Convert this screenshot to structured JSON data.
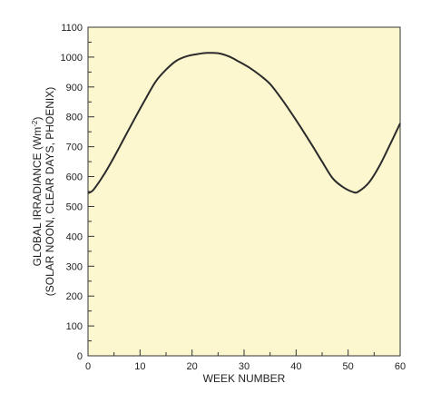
{
  "chart_data": {
    "type": "line",
    "xlabel": "WEEK NUMBER",
    "ylabel": {
      "line1_main": "GLOBAL IRRADIANCE (Wm",
      "line1_sup": "-2",
      "line1_end": ")",
      "line2": "(SOLAR NOON, CLEAR DAYS, PHOENIX)"
    },
    "xlim": [
      0,
      60
    ],
    "ylim": [
      0,
      1100
    ],
    "x_ticks": [
      0,
      10,
      20,
      30,
      40,
      50,
      60
    ],
    "x_minor_step": 5,
    "y_ticks": [
      0,
      100,
      200,
      300,
      400,
      500,
      600,
      700,
      800,
      900,
      1000,
      1100
    ],
    "y_minor_step": 50,
    "grid": false,
    "series": [
      {
        "color": "#2b2b2b",
        "points": [
          [
            0,
            545
          ],
          [
            1,
            555
          ],
          [
            3,
            605
          ],
          [
            5,
            665
          ],
          [
            7,
            730
          ],
          [
            9,
            795
          ],
          [
            11,
            858
          ],
          [
            13,
            918
          ],
          [
            15,
            958
          ],
          [
            17,
            988
          ],
          [
            19,
            1003
          ],
          [
            21,
            1010
          ],
          [
            23,
            1014
          ],
          [
            25,
            1013
          ],
          [
            27,
            1003
          ],
          [
            29,
            985
          ],
          [
            31,
            965
          ],
          [
            33,
            940
          ],
          [
            35,
            910
          ],
          [
            37,
            865
          ],
          [
            39,
            815
          ],
          [
            41,
            762
          ],
          [
            43,
            707
          ],
          [
            45,
            650
          ],
          [
            47,
            595
          ],
          [
            49,
            565
          ],
          [
            51,
            548
          ],
          [
            52,
            550
          ],
          [
            54,
            580
          ],
          [
            56,
            635
          ],
          [
            58,
            705
          ],
          [
            60,
            778
          ]
        ]
      }
    ],
    "colors": {
      "plot_background": "#fdf7cf",
      "axis": "#333333",
      "line": "#2b2b2b"
    }
  }
}
